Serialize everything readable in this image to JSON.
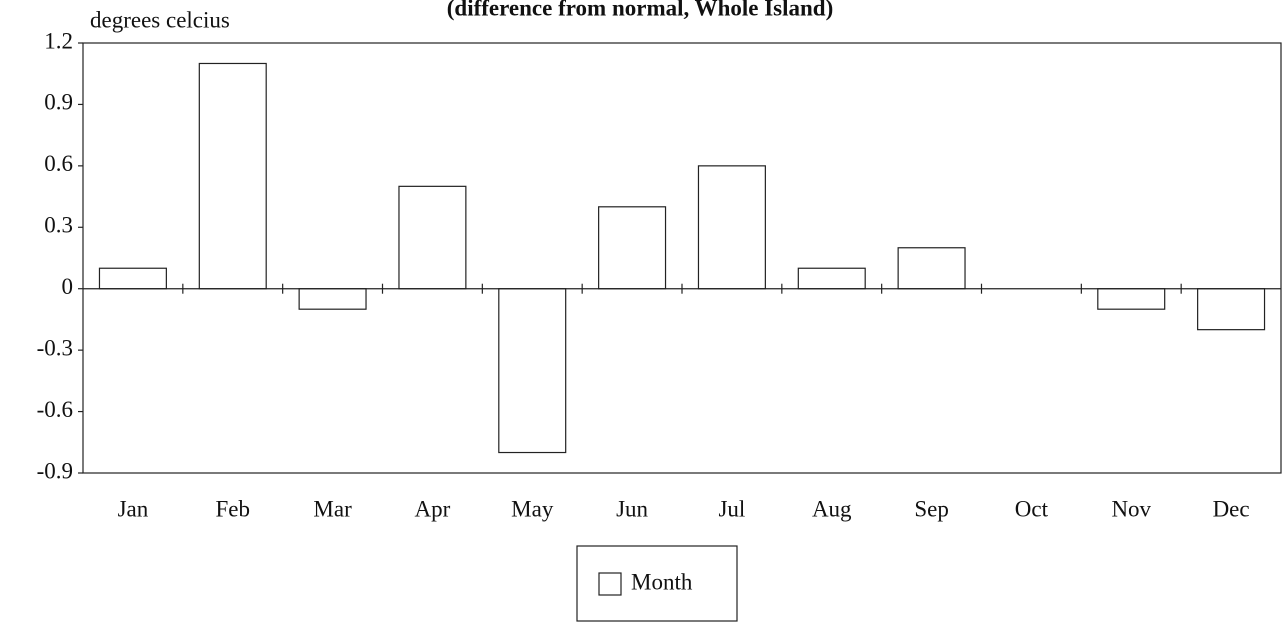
{
  "chart_data": {
    "type": "bar",
    "title": "(difference from normal, Whole Island)",
    "y_label": "degrees celcius",
    "categories": [
      "Jan",
      "Feb",
      "Mar",
      "Apr",
      "May",
      "Jun",
      "Jul",
      "Aug",
      "Sep",
      "Oct",
      "Nov",
      "Dec"
    ],
    "series": [
      {
        "name": "Month",
        "color": "#ffffff",
        "values": [
          0.1,
          1.1,
          -0.1,
          0.5,
          -0.8,
          0.4,
          0.6,
          0.1,
          0.2,
          0,
          -0.1,
          -0.2
        ]
      }
    ],
    "ylim": [
      -0.9,
      1.2
    ],
    "yticks": [
      -0.9,
      -0.6,
      -0.3,
      0,
      0.3,
      0.6,
      0.9,
      1.2
    ],
    "legend": "bottom"
  }
}
